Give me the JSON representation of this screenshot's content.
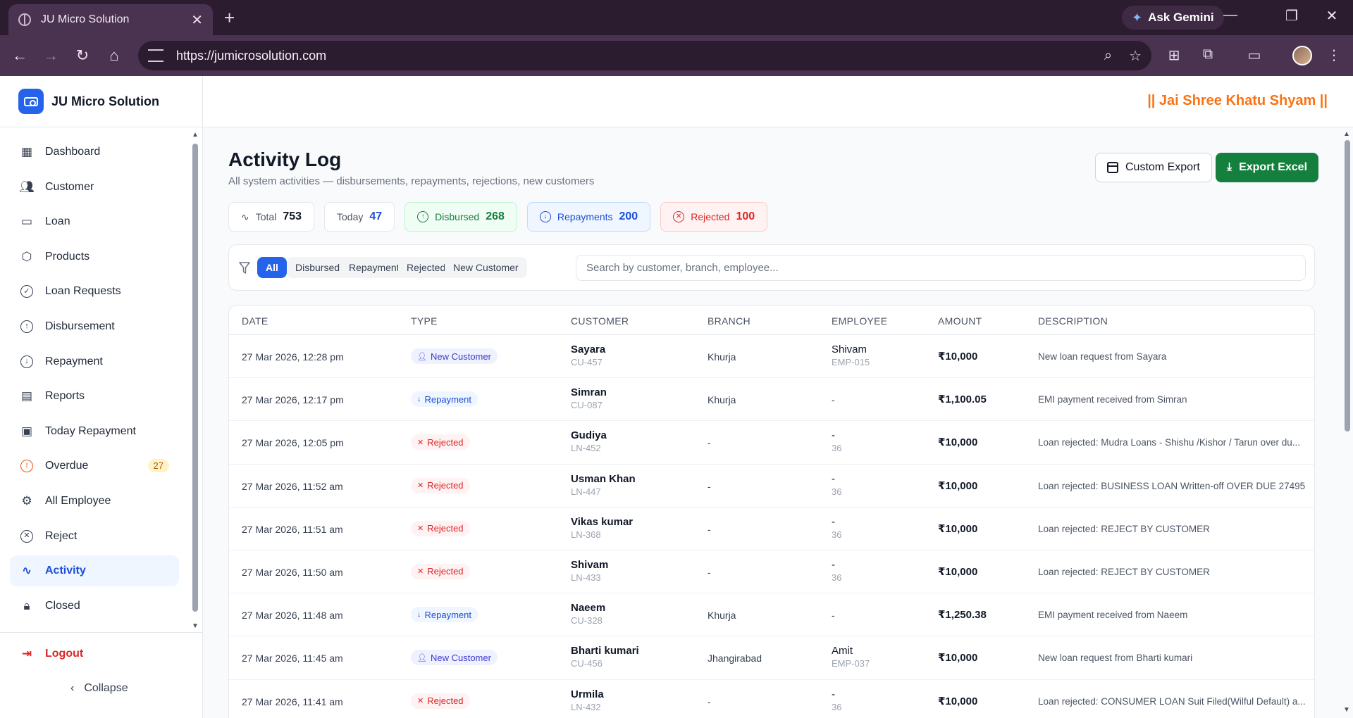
{
  "browser": {
    "tab_title": "JU Micro Solution",
    "url": "https://jumicrosolution.com",
    "gemini_label": "Ask Gemini"
  },
  "app": {
    "brand": "JU Micro Solution",
    "motto": "|| Jai Shree Khatu Shyam ||"
  },
  "sidebar": {
    "items": [
      {
        "label": "Dashboard",
        "icon": "dashboard-icon"
      },
      {
        "label": "Customer",
        "icon": "users-icon"
      },
      {
        "label": "Loan",
        "icon": "banknote-icon"
      },
      {
        "label": "Products",
        "icon": "package-icon"
      },
      {
        "label": "Loan Requests",
        "icon": "check-circle-icon"
      },
      {
        "label": "Disbursement",
        "icon": "arrow-up-circle-icon"
      },
      {
        "label": "Repayment",
        "icon": "arrow-down-circle-icon"
      },
      {
        "label": "Reports",
        "icon": "file-icon"
      },
      {
        "label": "Today Repayment",
        "icon": "calendar-icon"
      },
      {
        "label": "Overdue",
        "icon": "alert-circle-icon",
        "badge": "27"
      },
      {
        "label": "All Employee",
        "icon": "user-cog-icon"
      },
      {
        "label": "Reject",
        "icon": "x-circle-icon"
      },
      {
        "label": "Activity",
        "icon": "activity-icon",
        "active": true
      },
      {
        "label": "Closed",
        "icon": "lock-icon"
      }
    ],
    "logout": "Logout",
    "collapse": "Collapse"
  },
  "page": {
    "title": "Activity Log",
    "subtitle": "All system activities — disbursements, repayments, rejections, new customers",
    "custom_export": "Custom Export",
    "export_excel": "Export Excel"
  },
  "stats": {
    "total": {
      "label": "Total",
      "value": "753"
    },
    "today": {
      "label": "Today",
      "value": "47"
    },
    "disbursed": {
      "label": "Disbursed",
      "value": "268"
    },
    "repayments": {
      "label": "Repayments",
      "value": "200"
    },
    "rejected": {
      "label": "Rejected",
      "value": "100"
    }
  },
  "filters": {
    "chips": [
      "All",
      "Disbursed",
      "Repayment",
      "Rejected",
      "New Customer"
    ],
    "active": "All",
    "search_placeholder": "Search by customer, branch, employee..."
  },
  "table": {
    "headers": [
      "DATE",
      "TYPE",
      "CUSTOMER",
      "BRANCH",
      "EMPLOYEE",
      "AMOUNT",
      "DESCRIPTION"
    ],
    "rows": [
      {
        "date": "27 Mar 2026, 12:28 pm",
        "type": "New Customer",
        "kind": "newc",
        "customer": "Sayara",
        "cust_id": "CU-457",
        "branch": "Khurja",
        "employee": "Shivam",
        "emp_id": "EMP-015",
        "amount": "₹10,000",
        "description": "New loan request from Sayara"
      },
      {
        "date": "27 Mar 2026, 12:17 pm",
        "type": "Repayment",
        "kind": "repay",
        "customer": "Simran",
        "cust_id": "CU-087",
        "branch": "Khurja",
        "employee": "-",
        "emp_id": "",
        "amount": "₹1,100.05",
        "description": "EMI payment received from Simran"
      },
      {
        "date": "27 Mar 2026, 12:05 pm",
        "type": "Rejected",
        "kind": "rej",
        "customer": "Gudiya",
        "cust_id": "LN-452",
        "branch": "-",
        "employee": "-",
        "emp_id": "36",
        "amount": "₹10,000",
        "description": "Loan rejected: Mudra Loans - Shishu /Kishor / Tarun over du..."
      },
      {
        "date": "27 Mar 2026, 11:52 am",
        "type": "Rejected",
        "kind": "rej",
        "customer": "Usman Khan",
        "cust_id": "LN-447",
        "branch": "-",
        "employee": "-",
        "emp_id": "36",
        "amount": "₹10,000",
        "description": "Loan rejected: BUSINESS LOAN Written-off OVER DUE 27495"
      },
      {
        "date": "27 Mar 2026, 11:51 am",
        "type": "Rejected",
        "kind": "rej",
        "customer": "Vikas kumar",
        "cust_id": "LN-368",
        "branch": "-",
        "employee": "-",
        "emp_id": "36",
        "amount": "₹10,000",
        "description": "Loan rejected: REJECT BY CUSTOMER"
      },
      {
        "date": "27 Mar 2026, 11:50 am",
        "type": "Rejected",
        "kind": "rej",
        "customer": "Shivam",
        "cust_id": "LN-433",
        "branch": "-",
        "employee": "-",
        "emp_id": "36",
        "amount": "₹10,000",
        "description": "Loan rejected: REJECT BY CUSTOMER"
      },
      {
        "date": "27 Mar 2026, 11:48 am",
        "type": "Repayment",
        "kind": "repay",
        "customer": "Naeem",
        "cust_id": "CU-328",
        "branch": "Khurja",
        "employee": "-",
        "emp_id": "",
        "amount": "₹1,250.38",
        "description": "EMI payment received from Naeem"
      },
      {
        "date": "27 Mar 2026, 11:45 am",
        "type": "New Customer",
        "kind": "newc",
        "customer": "Bharti kumari",
        "cust_id": "CU-456",
        "branch": "Jhangirabad",
        "employee": "Amit",
        "emp_id": "EMP-037",
        "amount": "₹10,000",
        "description": "New loan request from Bharti kumari"
      },
      {
        "date": "27 Mar 2026, 11:41 am",
        "type": "Rejected",
        "kind": "rej",
        "customer": "Urmila",
        "cust_id": "LN-432",
        "branch": "-",
        "employee": "-",
        "emp_id": "36",
        "amount": "₹10,000",
        "description": "Loan rejected: CONSUMER LOAN Suit Filed(Wilful Default) a..."
      }
    ]
  },
  "colors": {
    "primary": "#2563eb",
    "success": "#15803d",
    "danger": "#dc2626",
    "accent": "#f97316"
  }
}
